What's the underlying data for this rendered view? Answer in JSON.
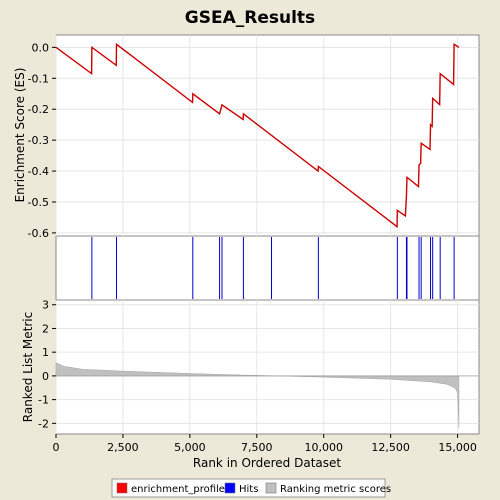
{
  "chart_data": {
    "type": "line",
    "title": "GSEA_Results",
    "xlabel": "Rank in Ordered Dataset",
    "xlim": [
      0,
      15800
    ],
    "x_ticks": [
      0,
      2500,
      5000,
      7500,
      10000,
      12500,
      15000
    ],
    "x_tick_labels": [
      "0",
      "2,500",
      "5,000",
      "7,500",
      "10,000",
      "12,500",
      "15,000"
    ],
    "es_panel": {
      "ylabel": "Enrichment Score (ES)",
      "ylim": [
        -0.61,
        0.04
      ],
      "y_ticks": [
        0.0,
        -0.1,
        -0.2,
        -0.3,
        -0.4,
        -0.5,
        -0.6
      ],
      "y_tick_labels": [
        "0.0",
        "-0.1",
        "-0.2",
        "-0.3",
        "-0.4",
        "-0.5",
        "-0.6"
      ],
      "series": [
        {
          "name": "enrichment_profile",
          "color": "#cc0000",
          "points": [
            [
              0,
              0.0
            ],
            [
              1330,
              -0.085
            ],
            [
              1340,
              0.0
            ],
            [
              2250,
              -0.058
            ],
            [
              2260,
              0.01
            ],
            [
              5100,
              -0.178
            ],
            [
              5110,
              -0.15
            ],
            [
              6110,
              -0.215
            ],
            [
              6200,
              -0.186
            ],
            [
              6990,
              -0.233
            ],
            [
              7000,
              -0.215
            ],
            [
              9790,
              -0.4
            ],
            [
              9800,
              -0.385
            ],
            [
              12740,
              -0.58
            ],
            [
              12750,
              -0.527
            ],
            [
              13050,
              -0.545
            ],
            [
              13090,
              -0.48
            ],
            [
              13110,
              -0.42
            ],
            [
              13540,
              -0.45
            ],
            [
              13560,
              -0.38
            ],
            [
              13620,
              -0.375
            ],
            [
              13640,
              -0.31
            ],
            [
              13970,
              -0.33
            ],
            [
              13990,
              -0.25
            ],
            [
              14050,
              -0.255
            ],
            [
              14070,
              -0.165
            ],
            [
              14330,
              -0.185
            ],
            [
              14350,
              -0.085
            ],
            [
              14850,
              -0.12
            ],
            [
              14870,
              0.01
            ],
            [
              15050,
              0.0
            ]
          ]
        }
      ]
    },
    "hits": {
      "name": "Hits",
      "color": "#0000cc",
      "positions": [
        1340,
        2260,
        5110,
        6110,
        6200,
        7000,
        8050,
        9800,
        12750,
        13090,
        13110,
        13560,
        13640,
        13990,
        14070,
        14350,
        14870
      ]
    },
    "ranked_metric_panel": {
      "name": "Ranking metric scores",
      "ylabel": "Ranked List Metric",
      "ylim": [
        -2.45,
        3.2
      ],
      "y_ticks": [
        3,
        2,
        1,
        0,
        -1,
        -2
      ],
      "y_tick_labels": [
        "3",
        "2",
        "1",
        "0",
        "-1",
        "-2"
      ],
      "color": "#c0c0c0",
      "profile": [
        [
          0,
          0.55
        ],
        [
          300,
          0.4
        ],
        [
          1000,
          0.28
        ],
        [
          2500,
          0.2
        ],
        [
          5000,
          0.1
        ],
        [
          7500,
          0.02
        ],
        [
          10000,
          -0.05
        ],
        [
          12500,
          -0.14
        ],
        [
          14000,
          -0.25
        ],
        [
          14600,
          -0.35
        ],
        [
          14900,
          -0.5
        ],
        [
          15000,
          -0.7
        ],
        [
          15030,
          -1.5
        ],
        [
          15050,
          -2.2
        ]
      ]
    },
    "legend": {
      "placement": "bottom",
      "items": [
        {
          "label": "enrichment_profile",
          "color": "#ff0000"
        },
        {
          "label": "Hits",
          "color": "#0000ff"
        },
        {
          "label": "Ranking metric scores",
          "color": "#c0c0c0"
        }
      ]
    }
  }
}
